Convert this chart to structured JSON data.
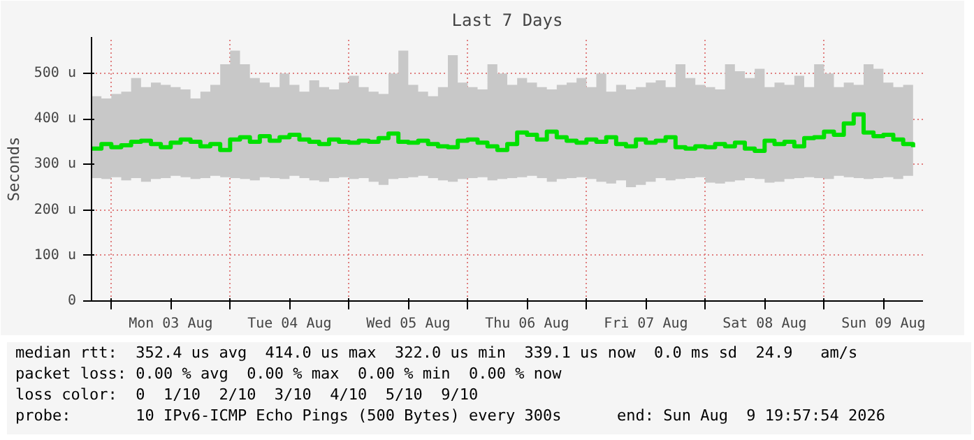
{
  "chart_data": {
    "type": "step",
    "title": "Last 7 Days",
    "ylabel": "Seconds",
    "xlim": [
      "2026-08-02T20:00",
      "2026-08-09T20:00"
    ],
    "xticks": [
      {
        "value": "2026-08-03T00:00",
        "label": null
      },
      {
        "value": "2026-08-03T12:00",
        "label": "Mon 03 Aug"
      },
      {
        "value": "2026-08-04T00:00",
        "label": null
      },
      {
        "value": "2026-08-04T12:00",
        "label": "Tue 04 Aug"
      },
      {
        "value": "2026-08-05T00:00",
        "label": null
      },
      {
        "value": "2026-08-05T12:00",
        "label": "Wed 05 Aug"
      },
      {
        "value": "2026-08-06T00:00",
        "label": null
      },
      {
        "value": "2026-08-06T12:00",
        "label": "Thu 06 Aug"
      },
      {
        "value": "2026-08-07T00:00",
        "label": null
      },
      {
        "value": "2026-08-07T12:00",
        "label": "Fri 07 Aug"
      },
      {
        "value": "2026-08-08T00:00",
        "label": null
      },
      {
        "value": "2026-08-08T12:00",
        "label": "Sat 08 Aug"
      },
      {
        "value": "2026-08-09T00:00",
        "label": null
      },
      {
        "value": "2026-08-09T12:00",
        "label": "Sun 09 Aug"
      }
    ],
    "ylim": [
      0,
      580
    ],
    "yticks": [
      0,
      {
        "value": 100,
        "label": "100 u"
      },
      {
        "value": 200,
        "label": "200 u"
      },
      {
        "value": 300,
        "label": "300 u"
      },
      {
        "value": 400,
        "label": "400 u"
      },
      {
        "value": 500,
        "label": "500 u"
      }
    ],
    "grid": true,
    "marker": "none",
    "line_style": "solid",
    "x": [
      "2026-08-02T20:00",
      "2026-08-02T22:00",
      "2026-08-03T00:00",
      "2026-08-03T02:00",
      "2026-08-03T04:00",
      "2026-08-03T06:00",
      "2026-08-03T08:00",
      "2026-08-03T10:00",
      "2026-08-03T12:00",
      "2026-08-03T14:00",
      "2026-08-03T16:00",
      "2026-08-03T18:00",
      "2026-08-03T20:00",
      "2026-08-03T22:00",
      "2026-08-04T00:00",
      "2026-08-04T02:00",
      "2026-08-04T04:00",
      "2026-08-04T06:00",
      "2026-08-04T08:00",
      "2026-08-04T10:00",
      "2026-08-04T12:00",
      "2026-08-04T14:00",
      "2026-08-04T16:00",
      "2026-08-04T18:00",
      "2026-08-04T20:00",
      "2026-08-04T22:00",
      "2026-08-05T00:00",
      "2026-08-05T02:00",
      "2026-08-05T04:00",
      "2026-08-05T06:00",
      "2026-08-05T08:00",
      "2026-08-05T10:00",
      "2026-08-05T12:00",
      "2026-08-05T14:00",
      "2026-08-05T16:00",
      "2026-08-05T18:00",
      "2026-08-05T20:00",
      "2026-08-05T22:00",
      "2026-08-06T00:00",
      "2026-08-06T02:00",
      "2026-08-06T04:00",
      "2026-08-06T06:00",
      "2026-08-06T08:00",
      "2026-08-06T10:00",
      "2026-08-06T12:00",
      "2026-08-06T14:00",
      "2026-08-06T16:00",
      "2026-08-06T18:00",
      "2026-08-06T20:00",
      "2026-08-06T22:00",
      "2026-08-07T00:00",
      "2026-08-07T02:00",
      "2026-08-07T04:00",
      "2026-08-07T06:00",
      "2026-08-07T08:00",
      "2026-08-07T10:00",
      "2026-08-07T12:00",
      "2026-08-07T14:00",
      "2026-08-07T16:00",
      "2026-08-07T18:00",
      "2026-08-07T20:00",
      "2026-08-07T22:00",
      "2026-08-08T00:00",
      "2026-08-08T02:00",
      "2026-08-08T04:00",
      "2026-08-08T06:00",
      "2026-08-08T08:00",
      "2026-08-08T10:00",
      "2026-08-08T12:00",
      "2026-08-08T14:00",
      "2026-08-08T16:00",
      "2026-08-08T18:00",
      "2026-08-08T20:00",
      "2026-08-08T22:00",
      "2026-08-09T00:00",
      "2026-08-09T02:00",
      "2026-08-09T04:00",
      "2026-08-09T06:00",
      "2026-08-09T08:00",
      "2026-08-09T10:00",
      "2026-08-09T12:00",
      "2026-08-09T14:00",
      "2026-08-09T16:00",
      "2026-08-09T18:00"
    ],
    "series": [
      {
        "color": "#00e000",
        "values": [
          335,
          345,
          338,
          342,
          350,
          352,
          345,
          338,
          348,
          355,
          350,
          340,
          345,
          332,
          355,
          360,
          350,
          362,
          352,
          360,
          365,
          355,
          350,
          345,
          355,
          350,
          348,
          352,
          350,
          358,
          368,
          350,
          348,
          352,
          345,
          340,
          338,
          352,
          355,
          348,
          340,
          332,
          345,
          370,
          365,
          355,
          372,
          360,
          352,
          348,
          355,
          350,
          360,
          345,
          340,
          355,
          348,
          352,
          360,
          338,
          335,
          340,
          338,
          345,
          340,
          348,
          335,
          330,
          352,
          345,
          350,
          340,
          358,
          360,
          372,
          365,
          390,
          410,
          370,
          362,
          365,
          355,
          345,
          338
        ],
        "lower": [
          270,
          268,
          272,
          265,
          270,
          262,
          268,
          270,
          275,
          272,
          268,
          270,
          275,
          272,
          270,
          268,
          265,
          272,
          270,
          268,
          275,
          270,
          265,
          262,
          270,
          272,
          268,
          270,
          262,
          255,
          268,
          270,
          272,
          275,
          270,
          265,
          262,
          268,
          270,
          272,
          265,
          268,
          270,
          272,
          275,
          270,
          262,
          268,
          270,
          272,
          268,
          262,
          258,
          265,
          250,
          255,
          262,
          270,
          265,
          268,
          270,
          272,
          260,
          258,
          262,
          265,
          270,
          268,
          260,
          262,
          268,
          270,
          272,
          270,
          268,
          275,
          272,
          270,
          268,
          270,
          272,
          268,
          275,
          278
        ],
        "upper": [
          450,
          445,
          455,
          460,
          490,
          470,
          480,
          475,
          470,
          465,
          445,
          460,
          475,
          520,
          550,
          520,
          490,
          480,
          470,
          500,
          475,
          460,
          485,
          470,
          465,
          480,
          495,
          470,
          460,
          455,
          500,
          550,
          475,
          460,
          450,
          470,
          540,
          480,
          470,
          465,
          520,
          500,
          475,
          490,
          480,
          470,
          465,
          475,
          480,
          490,
          470,
          500,
          460,
          475,
          465,
          470,
          480,
          485,
          470,
          520,
          490,
          475,
          470,
          465,
          520,
          505,
          490,
          510,
          470,
          480,
          475,
          495,
          470,
          520,
          500,
          470,
          480,
          475,
          520,
          510,
          480,
          470,
          475,
          460
        ]
      }
    ],
    "annotations": [
      "median rtt:  352.4 us avg  414.0 us max  322.0 us min  339.1 us now  0.0 ms sd  24.9   am/s",
      "packet loss: 0.00 % avg  0.00 % max  0.00 % min  0.00 % now",
      "loss color:  0  1/10  2/10  3/10  4/10  5/10  9/10",
      "probe:       10 IPv6-ICMP Echo Pings (500 Bytes) every 300s      end: Sun Aug  9 19:57:54 2026"
    ]
  }
}
